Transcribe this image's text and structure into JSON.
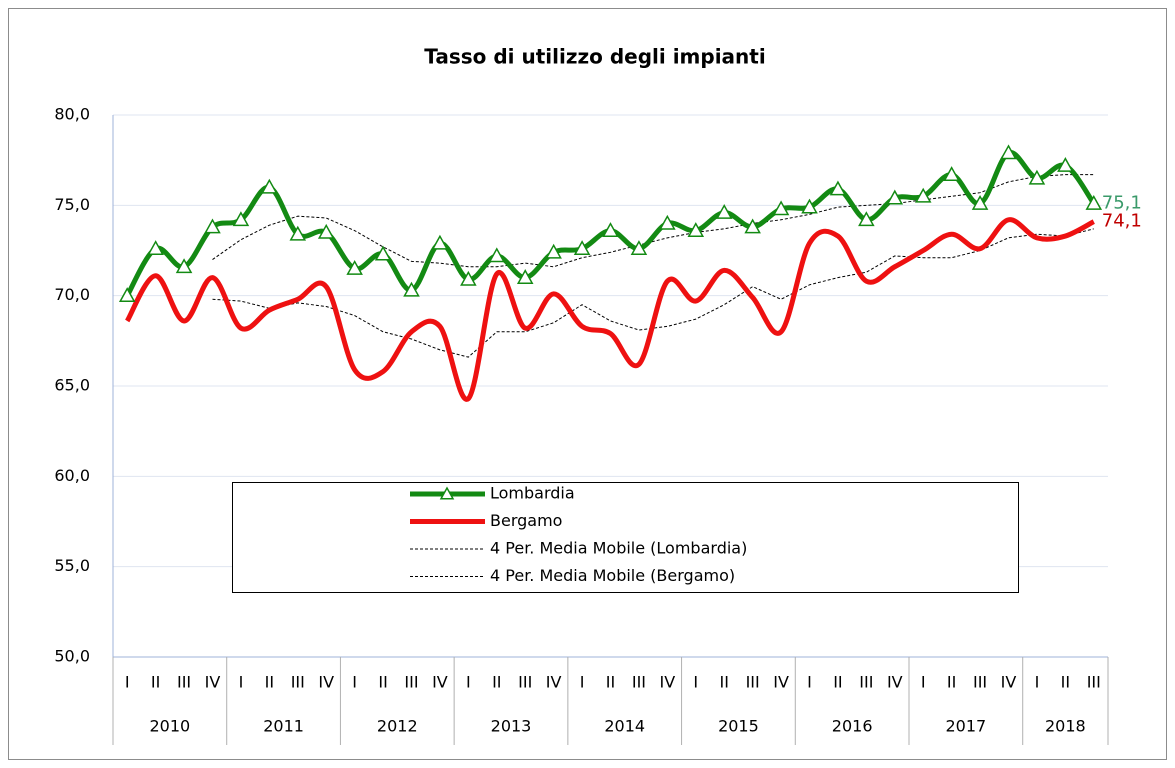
{
  "chart_data": {
    "type": "line",
    "title": "Tasso di utilizzo degli impianti",
    "categories": [
      "I",
      "II",
      "III",
      "IV",
      "I",
      "II",
      "III",
      "IV",
      "I",
      "II",
      "III",
      "IV",
      "I",
      "II",
      "III",
      "IV",
      "I",
      "II",
      "III",
      "IV",
      "I",
      "II",
      "III",
      "IV",
      "I",
      "II",
      "III",
      "IV",
      "I",
      "II",
      "III",
      "IV",
      "I",
      "II",
      "III"
    ],
    "category_groups": [
      "2010",
      "2011",
      "2012",
      "2013",
      "2014",
      "2015",
      "2016",
      "2017",
      "2018"
    ],
    "series": [
      {
        "name": "Lombardia",
        "color": "#138a13",
        "width": 5,
        "marker": "triangle",
        "smooth": true,
        "values": [
          70.0,
          72.6,
          71.6,
          73.8,
          74.2,
          76.0,
          73.4,
          73.5,
          71.5,
          72.3,
          70.3,
          72.9,
          70.9,
          72.2,
          71.0,
          72.4,
          72.6,
          73.6,
          72.6,
          74.0,
          73.6,
          74.6,
          73.8,
          74.8,
          74.9,
          75.9,
          74.2,
          75.4,
          75.5,
          76.7,
          75.1,
          77.9,
          76.5,
          77.2,
          75.1
        ],
        "value_labels": [
          null,
          null,
          null,
          null,
          null,
          null,
          null,
          null,
          null,
          null,
          null,
          null,
          null,
          null,
          null,
          null,
          null,
          null,
          null,
          null,
          null,
          null,
          null,
          null,
          null,
          null,
          null,
          null,
          null,
          null,
          null,
          null,
          null,
          null,
          "75,1"
        ],
        "label_color": "#3a9a6a"
      },
      {
        "name": "Bergamo",
        "color": "#ee1111",
        "width": 5,
        "smooth": true,
        "values": [
          68.6,
          71.1,
          68.6,
          71.0,
          68.2,
          69.2,
          69.8,
          70.5,
          65.9,
          65.8,
          68.0,
          68.3,
          64.3,
          71.2,
          68.2,
          70.1,
          68.3,
          67.9,
          66.2,
          70.8,
          69.7,
          71.4,
          69.9,
          68.0,
          72.9,
          73.3,
          70.8,
          71.6,
          72.5,
          73.4,
          72.6,
          74.2,
          73.2,
          73.3,
          74.1
        ],
        "value_labels": [
          null,
          null,
          null,
          null,
          null,
          null,
          null,
          null,
          null,
          null,
          null,
          null,
          null,
          null,
          null,
          null,
          null,
          null,
          null,
          null,
          null,
          null,
          null,
          null,
          null,
          null,
          null,
          null,
          null,
          null,
          null,
          null,
          null,
          null,
          "74,1"
        ],
        "label_color": "#c00000"
      },
      {
        "name": "4 Per. Media Mobile (Lombardia)",
        "color": "#000000",
        "width": 1,
        "dash": true,
        "values": [
          null,
          null,
          null,
          72.0,
          73.1,
          73.9,
          74.4,
          74.3,
          73.6,
          72.7,
          71.9,
          71.8,
          71.6,
          71.6,
          71.8,
          71.6,
          72.1,
          72.4,
          72.8,
          73.2,
          73.5,
          73.7,
          74.0,
          74.2,
          74.5,
          74.9,
          75.0,
          75.1,
          75.3,
          75.5,
          75.7,
          76.3,
          76.6,
          76.7,
          76.7
        ]
      },
      {
        "name": "4 Per. Media Mobile (Bergamo)",
        "color": "#000000",
        "width": 1,
        "dash": true,
        "values": [
          null,
          null,
          null,
          69.8,
          69.7,
          69.3,
          69.6,
          69.4,
          68.9,
          68.0,
          67.6,
          67.0,
          66.6,
          68.0,
          68.0,
          68.5,
          69.5,
          68.6,
          68.1,
          68.3,
          68.7,
          69.5,
          70.5,
          69.8,
          70.6,
          71.0,
          71.3,
          72.2,
          72.1,
          72.1,
          72.5,
          73.2,
          73.4,
          73.3,
          73.7
        ]
      }
    ],
    "ylim": [
      50,
      80
    ],
    "yticks": [
      {
        "value": 50,
        "label": "50,0"
      },
      {
        "value": 55,
        "label": "55,0"
      },
      {
        "value": 60,
        "label": "60,0"
      },
      {
        "value": 65,
        "label": "65,0"
      },
      {
        "value": 70,
        "label": "70,0"
      },
      {
        "value": 75,
        "label": "75,0"
      },
      {
        "value": 80,
        "label": "80,0"
      }
    ],
    "grid": true
  }
}
